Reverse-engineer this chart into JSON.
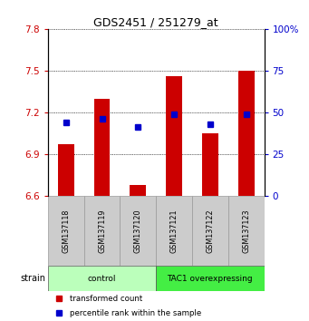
{
  "title": "GDS2451 / 251279_at",
  "samples": [
    "GSM137118",
    "GSM137119",
    "GSM137120",
    "GSM137121",
    "GSM137122",
    "GSM137123"
  ],
  "transformed_counts": [
    6.97,
    7.3,
    6.68,
    7.46,
    7.05,
    7.5
  ],
  "percentile_ranks": [
    44,
    46,
    41,
    49,
    43,
    49
  ],
  "ylim_left": [
    6.6,
    7.8
  ],
  "ylim_right": [
    0,
    100
  ],
  "yticks_left": [
    6.6,
    6.9,
    7.2,
    7.5,
    7.8
  ],
  "yticks_right": [
    0,
    25,
    50,
    75,
    100
  ],
  "bar_bottom": 6.6,
  "groups": [
    {
      "label": "control",
      "indices": [
        0,
        1,
        2
      ],
      "color": "#bbffbb"
    },
    {
      "label": "TAC1 overexpressing",
      "indices": [
        3,
        4,
        5
      ],
      "color": "#44ee44"
    }
  ],
  "bar_color": "#cc0000",
  "dot_color": "#0000cc",
  "bar_width": 0.45,
  "dot_size": 5,
  "legend_red_label": "transformed count",
  "legend_blue_label": "percentile rank within the sample",
  "strain_label": "strain",
  "left_tick_color": "#cc0000",
  "right_tick_color": "#0000cc"
}
